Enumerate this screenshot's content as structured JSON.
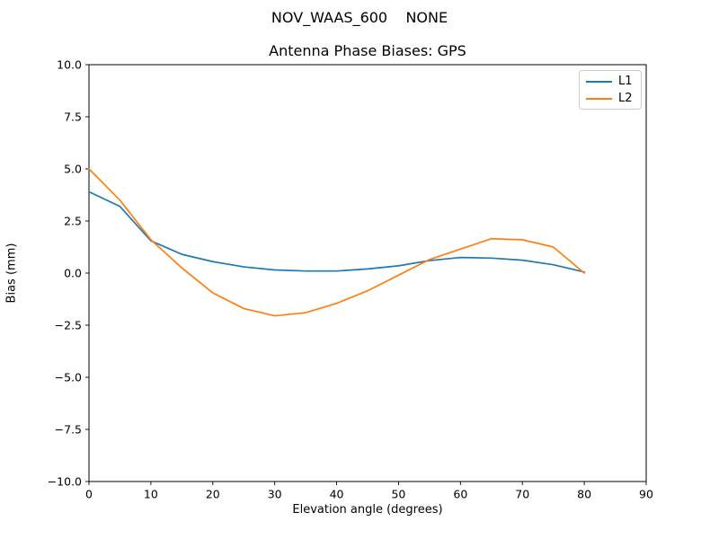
{
  "figure": {
    "suptitle": "NOV_WAAS_600    NONE",
    "title": "Antenna Phase Biases: GPS",
    "xlabel": "Elevation angle (degrees)",
    "ylabel": "Bias (mm)"
  },
  "legend": {
    "entries": [
      {
        "label": "L1",
        "color": "#1f77b4"
      },
      {
        "label": "L2",
        "color": "#ff7f0e"
      }
    ],
    "position": "upper right"
  },
  "chart_data": {
    "type": "line",
    "title": "Antenna Phase Biases: GPS",
    "suptitle": "NOV_WAAS_600    NONE",
    "xlabel": "Elevation angle (degrees)",
    "ylabel": "Bias (mm)",
    "xlim": [
      0,
      90
    ],
    "ylim": [
      -10,
      10
    ],
    "x_ticks": [
      0,
      10,
      20,
      30,
      40,
      50,
      60,
      70,
      80,
      90
    ],
    "y_ticks": [
      -10.0,
      -7.5,
      -5.0,
      -2.5,
      0.0,
      2.5,
      5.0,
      7.5,
      10.0
    ],
    "grid": false,
    "legend_position": "upper right",
    "x": [
      0,
      5,
      10,
      15,
      20,
      25,
      30,
      35,
      40,
      45,
      50,
      55,
      60,
      65,
      70,
      75,
      80
    ],
    "series": [
      {
        "name": "L1",
        "color": "#1f77b4",
        "values": [
          3.9,
          3.2,
          1.55,
          0.9,
          0.55,
          0.3,
          0.15,
          0.1,
          0.1,
          0.2,
          0.35,
          0.6,
          0.75,
          0.72,
          0.62,
          0.4,
          0.05
        ]
      },
      {
        "name": "L2",
        "color": "#ff7f0e",
        "values": [
          5.0,
          3.5,
          1.6,
          0.25,
          -0.95,
          -1.7,
          -2.05,
          -1.9,
          -1.45,
          -0.85,
          -0.1,
          0.65,
          1.15,
          1.65,
          1.6,
          1.25,
          0.0
        ]
      }
    ]
  }
}
